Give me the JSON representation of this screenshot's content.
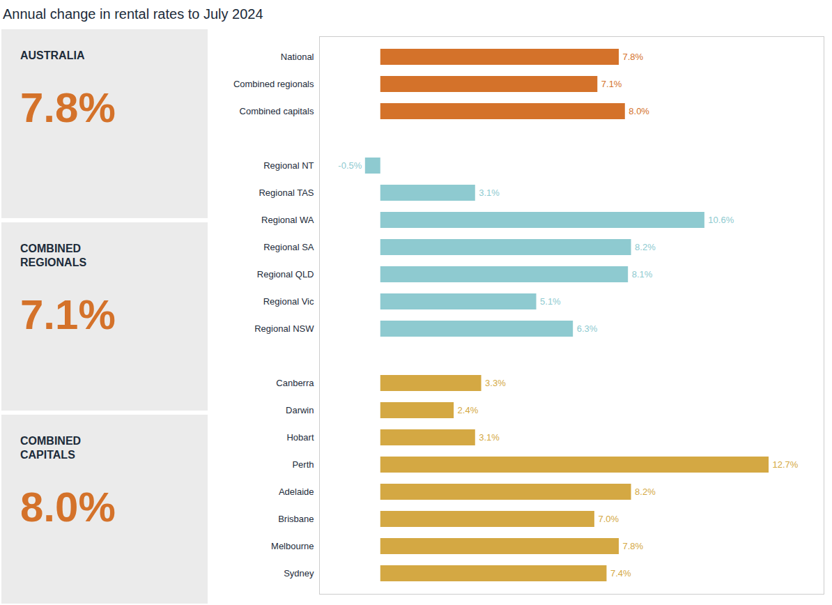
{
  "chart_data": {
    "type": "bar",
    "title": "Annual change in rental rates to July 2024",
    "orientation": "horizontal",
    "categories": [
      "National",
      "Combined regionals",
      "Combined capitals",
      null,
      "Regional NT",
      "Regional TAS",
      "Regional WA",
      "Regional SA",
      "Regional QLD",
      "Regional Vic",
      "Regional NSW",
      null,
      "Canberra",
      "Darwin",
      "Hobart",
      "Perth",
      "Adelaide",
      "Brisbane",
      "Melbourne",
      "Sydney"
    ],
    "values": [
      7.8,
      7.1,
      8.0,
      null,
      -0.5,
      3.1,
      10.6,
      8.2,
      8.1,
      5.1,
      6.3,
      null,
      3.3,
      2.4,
      3.1,
      12.7,
      8.2,
      7.0,
      7.8,
      7.4
    ],
    "value_labels": [
      "7.8%",
      "7.1%",
      "8.0%",
      null,
      "-0.5%",
      "3.1%",
      "10.6%",
      "8.2%",
      "8.1%",
      "5.1%",
      "6.3%",
      null,
      "3.3%",
      "2.4%",
      "3.1%",
      "12.7%",
      "8.2%",
      "7.0%",
      "7.8%",
      "7.4%"
    ],
    "colors": [
      "#D4722A",
      "#D4722A",
      "#D4722A",
      null,
      "#8ECAD0",
      "#8ECAD0",
      "#8ECAD0",
      "#8ECAD0",
      "#8ECAD0",
      "#8ECAD0",
      "#8ECAD0",
      null,
      "#D4A843",
      "#D4A843",
      "#D4A843",
      "#D4A843",
      "#D4A843",
      "#D4A843",
      "#D4A843",
      "#D4A843"
    ],
    "xlim": [
      -2.0,
      14.5
    ],
    "data_labels": true,
    "tick_labels": "y",
    "grid": false,
    "annotations": [
      {
        "label": "AUSTRALIA",
        "text": "7.8%",
        "color": "#D4722A"
      },
      {
        "label": "COMBINED\nREGIONALS",
        "text": "7.1%",
        "color": "#D4722A"
      },
      {
        "label": "COMBINED\nCAPITALS",
        "text": "8.0%",
        "color": "#D4722A"
      }
    ]
  }
}
